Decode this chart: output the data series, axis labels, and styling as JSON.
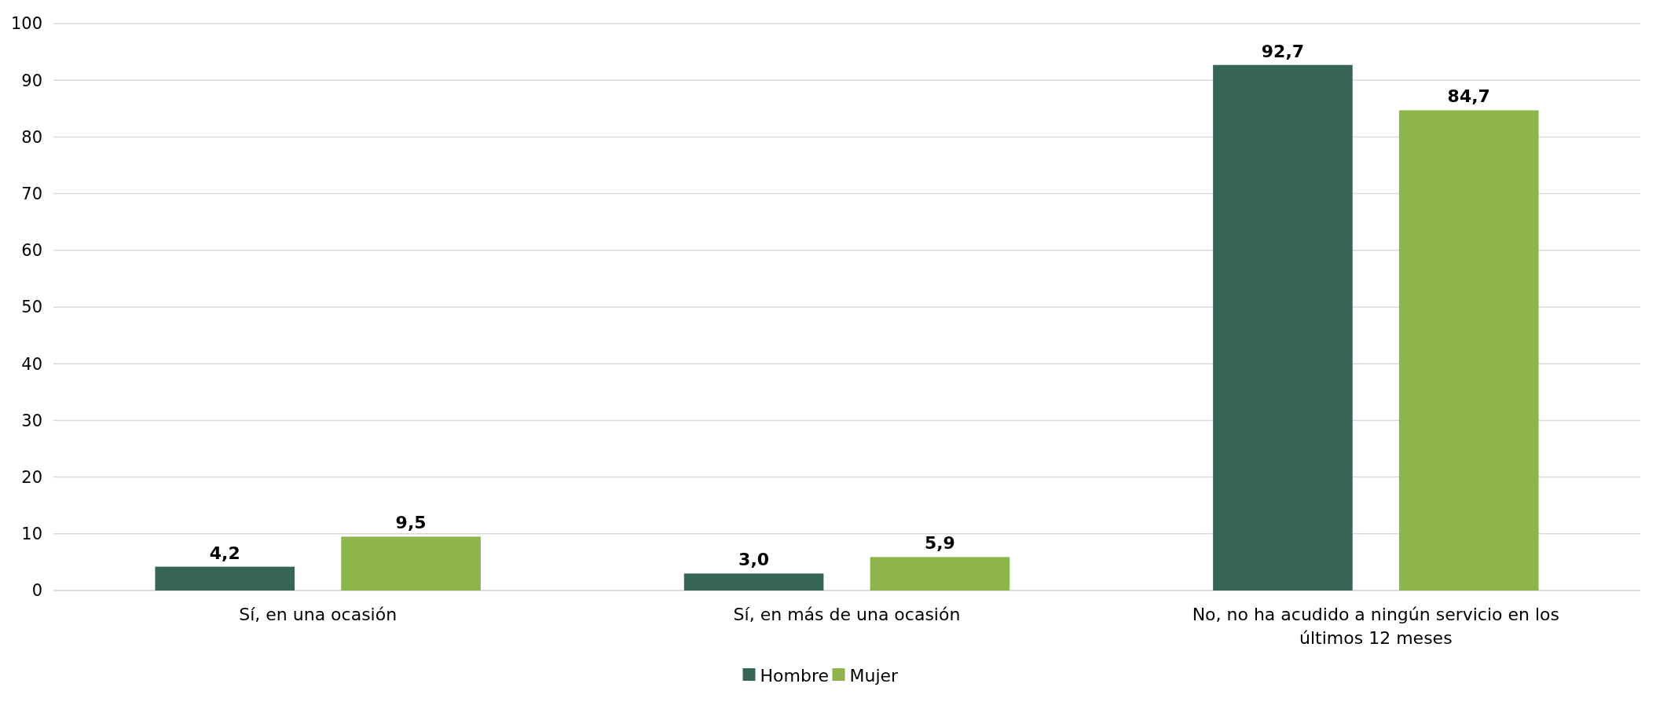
{
  "chart_data": {
    "type": "bar",
    "categories": [
      "Sí, en una ocasión",
      "Sí, en más de una ocasión",
      "No, no ha acudido a ningún servicio en los últimos 12 meses"
    ],
    "series": [
      {
        "name": "Hombre",
        "color": "#376657",
        "values": [
          4.2,
          3.0,
          92.7
        ],
        "value_labels": [
          "4,2",
          "3,0",
          "92,7"
        ]
      },
      {
        "name": "Mujer",
        "color": "#8db54b",
        "values": [
          9.5,
          5.9,
          84.7
        ],
        "value_labels": [
          "9,5",
          "5,9",
          "84,7"
        ]
      }
    ],
    "ylim": [
      0,
      100
    ],
    "yticks": [
      0,
      10,
      20,
      30,
      40,
      50,
      60,
      70,
      80,
      90,
      100
    ],
    "grid": "y",
    "legend": "bottom"
  }
}
